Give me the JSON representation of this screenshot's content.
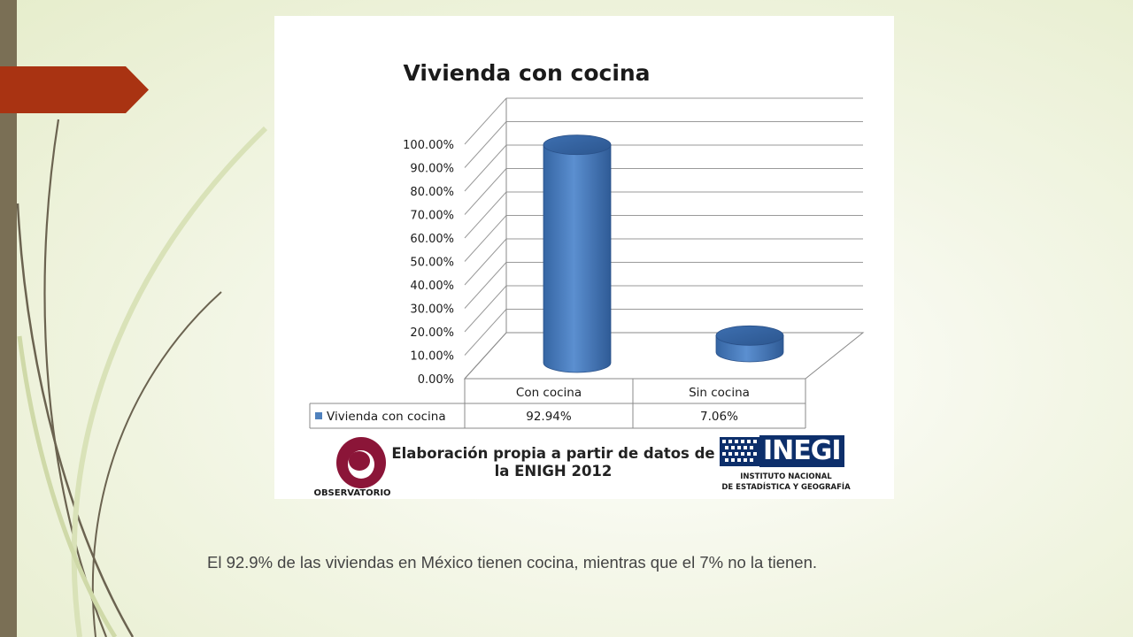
{
  "slide": {
    "caption": "El 92.9% de las viviendas en México tienen cocina, mientras que el 7% no la tienen."
  },
  "chart_data": {
    "type": "bar",
    "title": "Vivienda con cocina",
    "categories": [
      "Con cocina",
      "Sin cocina"
    ],
    "series": [
      {
        "name": "Vivienda con cocina",
        "values": [
          92.94,
          7.06
        ],
        "labels": [
          "92.94%",
          "7.06%"
        ]
      }
    ],
    "ylim": [
      0,
      100
    ],
    "yticks": [
      "0.00%",
      "10.00%",
      "20.00%",
      "30.00%",
      "40.00%",
      "50.00%",
      "60.00%",
      "70.00%",
      "80.00%",
      "90.00%",
      "100.00%"
    ],
    "grid": true,
    "legend": "data-table",
    "bar_color": "#4f81bd"
  },
  "source": {
    "text_line1": "Elaboración propia a partir de datos de",
    "text_line2": "la ENIGH 2012",
    "observatorio_label": "OBSERVATORIO",
    "inegi_word": "INEGI",
    "inegi_sub1": "INSTITUTO NACIONAL",
    "inegi_sub2": "DE ESTADÍSTICA Y GEOGRAFÍA"
  },
  "colors": {
    "accent_red": "#a93312",
    "left_bar": "#7a6f55",
    "logo_maroon": "#8b1538",
    "inegi_blue": "#0d2f6b"
  }
}
